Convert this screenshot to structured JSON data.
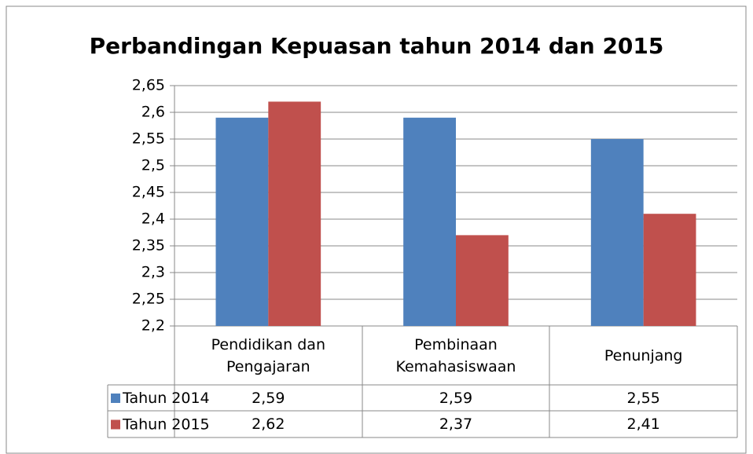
{
  "chart_data": {
    "type": "bar",
    "title": "Perbandingan Kepuasan tahun 2014 dan 2015",
    "categories": [
      "Pendidikan dan Pengajaran",
      "Pembinaan Kemahasiswaan",
      "Penunjang"
    ],
    "series": [
      {
        "name": "Tahun 2014",
        "color": "#4f81bd",
        "values": [
          2.59,
          2.59,
          2.55
        ],
        "value_labels": [
          "2,59",
          "2,59",
          "2,55"
        ]
      },
      {
        "name": "Tahun 2015",
        "color": "#c0504d",
        "values": [
          2.62,
          2.37,
          2.41
        ],
        "value_labels": [
          "2,62",
          "2,37",
          "2,41"
        ]
      }
    ],
    "ylim": [
      2.2,
      2.65
    ],
    "yticks": [
      {
        "value": 2.2,
        "label": "2,2"
      },
      {
        "value": 2.25,
        "label": "2,25"
      },
      {
        "value": 2.3,
        "label": "2,3"
      },
      {
        "value": 2.35,
        "label": "2,35"
      },
      {
        "value": 2.4,
        "label": "2,4"
      },
      {
        "value": 2.45,
        "label": "2,45"
      },
      {
        "value": 2.5,
        "label": "2,5"
      },
      {
        "value": 2.55,
        "label": "2,55"
      },
      {
        "value": 2.6,
        "label": "2,6"
      },
      {
        "value": 2.65,
        "label": "2,65"
      }
    ],
    "grid": true
  }
}
